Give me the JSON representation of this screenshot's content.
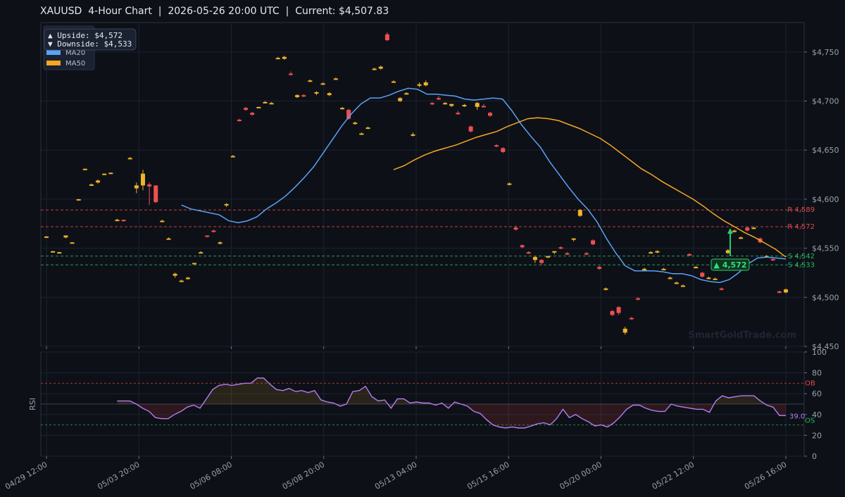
{
  "title": "XAUUSD  4-Hour Chart  |  2026-05-26 20:00 UTC  |  Current: $4,507.83",
  "watermark": "SmartGoldTrade.com",
  "colors": {
    "bg": "#0d1017",
    "grid": "#1c2230",
    "bull": "#f0b429",
    "bear": "#ef4f4f",
    "ma20": "#5aa2f5",
    "ma50": "#f5a623",
    "rsi": "#b57cf0",
    "resistance": "#e04a4a",
    "support": "#25b860",
    "arrow": "#2ecc71"
  },
  "chart_data": [
    {
      "type": "candlestick",
      "title": "XAUUSD  4-Hour Chart",
      "ylim": [
        4450,
        4780
      ],
      "y_ticks": [
        "$4,450",
        "$4,500",
        "$4,550",
        "$4,600",
        "$4,650",
        "$4,700",
        "$4,750"
      ],
      "y_tick_values": [
        4450,
        4500,
        4550,
        4600,
        4650,
        4700,
        4750
      ],
      "x_tick_labels": [
        "04/29 12:00",
        "05/03 20:00",
        "05/06 08:00",
        "05/08 20:00",
        "05/13 04:00",
        "05/15 16:00",
        "05/20 00:00",
        "05/22 12:00",
        "05/26 16:00"
      ],
      "legend": [
        {
          "name": "▲ Upside:   $4,572"
        },
        {
          "name": "▼ Downside: $4,533"
        },
        {
          "name": "MA20",
          "color": "#5aa2f5"
        },
        {
          "name": "MA50",
          "color": "#f5a623"
        }
      ],
      "levels": [
        {
          "label": "R 4,589",
          "value": 4589,
          "kind": "resistance"
        },
        {
          "label": "R 4,572",
          "value": 4572,
          "kind": "resistance"
        },
        {
          "label": "S 4,542",
          "value": 4542,
          "kind": "support"
        },
        {
          "label": "S 4,533",
          "value": 4533,
          "kind": "support"
        }
      ],
      "target_label": "▲ 4,572",
      "target_value": 4572,
      "candles": [
        [
          4562,
          4562,
          4561,
          4562
        ],
        [
          4547,
          4547,
          4546,
          4547
        ],
        [
          4546,
          4546,
          4545,
          4546
        ],
        [
          4561,
          4563,
          4560,
          4563
        ],
        [
          4556,
          4556,
          4555,
          4556
        ],
        [
          4600,
          4600,
          4599,
          4600
        ],
        [
          4631,
          4631,
          4630,
          4631
        ],
        [
          4615,
          4616,
          4614,
          4615
        ],
        [
          4617,
          4620,
          4616,
          4619
        ],
        [
          4626,
          4626,
          4625,
          4626
        ],
        [
          4627,
          4627,
          4626,
          4627
        ],
        [
          4579,
          4580,
          4578,
          4579
        ],
        [
          4579,
          4579,
          4577,
          4578
        ],
        [
          4642,
          4643,
          4641,
          4642
        ],
        [
          4611,
          4617,
          4606,
          4614
        ],
        [
          4614,
          4630,
          4609,
          4626
        ],
        [
          4615,
          4617,
          4594,
          4613
        ],
        [
          4614,
          4614,
          4596,
          4597
        ],
        [
          4578,
          4579,
          4577,
          4578
        ],
        [
          4560,
          4561,
          4559,
          4560
        ],
        [
          4522,
          4525,
          4520,
          4524
        ],
        [
          4517,
          4518,
          4516,
          4517
        ],
        [
          4520,
          4521,
          4518,
          4520
        ],
        [
          4535,
          4535,
          4534,
          4535
        ],
        [
          4546,
          4547,
          4545,
          4546
        ],
        [
          4563,
          4563,
          4561,
          4562
        ],
        [
          4568,
          4569,
          4566,
          4567
        ],
        [
          4555,
          4557,
          4554,
          4556
        ],
        [
          4594,
          4596,
          4592,
          4595
        ],
        [
          4644,
          4645,
          4643,
          4644
        ],
        [
          4681,
          4682,
          4679,
          4680
        ],
        [
          4693,
          4694,
          4690,
          4691
        ],
        [
          4688,
          4689,
          4685,
          4686
        ],
        [
          4694,
          4694,
          4693,
          4694
        ],
        [
          4699,
          4700,
          4698,
          4699
        ],
        [
          4698,
          4699,
          4697,
          4698
        ],
        [
          4744,
          4745,
          4743,
          4744
        ],
        [
          4743,
          4746,
          4742,
          4745
        ],
        [
          4728,
          4730,
          4726,
          4727
        ],
        [
          4704,
          4707,
          4703,
          4706
        ],
        [
          4706,
          4707,
          4704,
          4705
        ],
        [
          4721,
          4722,
          4720,
          4721
        ],
        [
          4708,
          4710,
          4706,
          4709
        ],
        [
          4718,
          4719,
          4717,
          4718
        ],
        [
          4706,
          4709,
          4705,
          4708
        ],
        [
          4723,
          4724,
          4722,
          4723
        ],
        [
          4693,
          4694,
          4692,
          4693
        ],
        [
          4691,
          4692,
          4681,
          4682
        ],
        [
          4677,
          4679,
          4676,
          4678
        ],
        [
          4667,
          4668,
          4666,
          4667
        ],
        [
          4673,
          4674,
          4672,
          4673
        ],
        [
          4733,
          4734,
          4732,
          4733
        ],
        [
          4733,
          4736,
          4732,
          4735
        ],
        [
          4768,
          4770,
          4761,
          4762
        ],
        [
          4720,
          4721,
          4719,
          4720
        ],
        [
          4700,
          4704,
          4699,
          4703
        ],
        [
          4708,
          4709,
          4707,
          4708
        ],
        [
          4666,
          4668,
          4664,
          4666
        ],
        [
          4716,
          4719,
          4714,
          4717
        ],
        [
          4716,
          4721,
          4715,
          4719
        ],
        [
          4698,
          4699,
          4696,
          4697
        ],
        [
          4703,
          4705,
          4701,
          4702
        ],
        [
          4698,
          4699,
          4697,
          4698
        ],
        [
          4695,
          4697,
          4694,
          4697
        ],
        [
          4688,
          4690,
          4686,
          4687
        ],
        [
          4695,
          4697,
          4694,
          4696
        ],
        [
          4674,
          4675,
          4668,
          4669
        ],
        [
          4694,
          4699,
          4691,
          4698
        ],
        [
          4695,
          4697,
          4694,
          4694
        ],
        [
          4688,
          4689,
          4684,
          4685
        ],
        [
          4655,
          4656,
          4653,
          4654
        ],
        [
          4652,
          4653,
          4647,
          4648
        ],
        [
          4615,
          4617,
          4614,
          4616
        ],
        [
          4571,
          4573,
          4568,
          4569
        ],
        [
          4553,
          4554,
          4550,
          4551
        ],
        [
          4546,
          4547,
          4544,
          4545
        ],
        [
          4538,
          4542,
          4535,
          4541
        ],
        [
          4538,
          4539,
          4533,
          4535
        ],
        [
          4541,
          4542,
          4540,
          4542
        ],
        [
          4546,
          4547,
          4544,
          4547
        ],
        [
          4551,
          4552,
          4549,
          4550
        ],
        [
          4545,
          4546,
          4543,
          4544
        ],
        [
          4559,
          4560,
          4557,
          4560
        ],
        [
          4583,
          4590,
          4582,
          4589
        ],
        [
          4545,
          4546,
          4543,
          4544
        ],
        [
          4558,
          4559,
          4553,
          4554
        ],
        [
          4531,
          4532,
          4528,
          4529
        ],
        [
          4509,
          4510,
          4507,
          4509
        ],
        [
          4486,
          4487,
          4481,
          4482
        ],
        [
          4490,
          4491,
          4482,
          4484
        ],
        [
          4464,
          4470,
          4462,
          4468
        ],
        [
          4479,
          4480,
          4477,
          4478
        ],
        [
          4499,
          4500,
          4497,
          4498
        ],
        [
          4529,
          4530,
          4527,
          4529
        ],
        [
          4546,
          4547,
          4545,
          4546
        ],
        [
          4546,
          4548,
          4545,
          4547
        ],
        [
          4529,
          4530,
          4528,
          4529
        ],
        [
          4520,
          4521,
          4519,
          4520
        ],
        [
          4515,
          4516,
          4514,
          4515
        ],
        [
          4512,
          4513,
          4511,
          4512
        ],
        [
          4544,
          4545,
          4542,
          4543
        ],
        [
          4531,
          4532,
          4530,
          4531
        ],
        [
          4525,
          4526,
          4520,
          4521
        ],
        [
          4520,
          4521,
          4519,
          4520
        ],
        [
          4519,
          4520,
          4518,
          4519
        ],
        [
          4509,
          4510,
          4507,
          4508
        ],
        [
          4545,
          4549,
          4544,
          4548
        ],
        [
          4567,
          4569,
          4566,
          4568
        ],
        [
          4561,
          4562,
          4560,
          4561
        ],
        [
          4571,
          4572,
          4567,
          4568
        ],
        [
          4571,
          4572,
          4570,
          4571
        ],
        [
          4560,
          4561,
          4555,
          4556
        ],
        [
          4542,
          4543,
          4541,
          4542
        ],
        [
          4539,
          4540,
          4537,
          4538
        ],
        [
          4506,
          4507,
          4504,
          4505
        ],
        [
          4505,
          4509,
          4504,
          4508
        ]
      ],
      "ma20": [
        [
          4594,
          4590,
          4588,
          4586,
          4584,
          4578,
          4576,
          4578,
          4582,
          4590,
          4596,
          4603,
          4612,
          4622,
          4633,
          4647,
          4661,
          4675,
          4687,
          4697,
          4703,
          4703,
          4706,
          4710,
          4713,
          4712,
          4707,
          4707,
          4706,
          4705,
          4702,
          4701,
          4702,
          4703,
          4702,
          4690,
          4676,
          4664,
          4653,
          4638,
          4625,
          4612,
          4600,
          4590,
          4577,
          4560,
          4545,
          4532,
          4527,
          4527,
          4527,
          4526,
          4524,
          4524,
          4522,
          4518,
          4516,
          4515,
          4518,
          4525,
          4534,
          4540,
          4541,
          4540,
          4539
        ],
        [
          0,
          1,
          2,
          3,
          4,
          5,
          6,
          7,
          8,
          9,
          10,
          11,
          12,
          13,
          14,
          15,
          16,
          17,
          18,
          19,
          20,
          21,
          22,
          23,
          24,
          25,
          26,
          27,
          28,
          29,
          30,
          31,
          32,
          33,
          34,
          35,
          36,
          37,
          38,
          39,
          40,
          41,
          42,
          43,
          44,
          45,
          46,
          47,
          48,
          49,
          50,
          51,
          52,
          53,
          54,
          55,
          56,
          57,
          58,
          59,
          60,
          61,
          62,
          63,
          64
        ]
      ],
      "ma50": [
        4630,
        4634,
        4640,
        4645,
        4649,
        4652,
        4655,
        4659,
        4663,
        4666,
        4669,
        4674,
        4678,
        4682,
        4683,
        4682,
        4680,
        4676,
        4672,
        4667,
        4662,
        4655,
        4647,
        4639,
        4631,
        4625,
        4618,
        4612,
        4606,
        4600,
        4593,
        4585,
        4578,
        4572,
        4566,
        4561,
        4555,
        4549,
        4541
      ],
      "target_x_index": 107
    },
    {
      "type": "line",
      "ylabel": "RSI",
      "ylim": [
        0,
        100
      ],
      "y_ticks": [
        "0",
        "20",
        "40",
        "60",
        "80",
        "100"
      ],
      "y_tick_values": [
        0,
        20,
        40,
        60,
        80,
        100
      ],
      "ob_label": "OB",
      "ob_value": 70,
      "os_label": "OS",
      "os_value": 30,
      "last_label": "39.0",
      "values": [
        53,
        53,
        53,
        50,
        46,
        43,
        37,
        36,
        36,
        40,
        43,
        47,
        49,
        46,
        55,
        64,
        68,
        69,
        68,
        69,
        70,
        70,
        75,
        75,
        69,
        64,
        63,
        65,
        62,
        63,
        61,
        63,
        54,
        52,
        51,
        48,
        50,
        62,
        63,
        67,
        57,
        53,
        54,
        46,
        55,
        55,
        51,
        52,
        51,
        51,
        49,
        51,
        46,
        52,
        50,
        48,
        43,
        41,
        35,
        30,
        28,
        27,
        28,
        27,
        27,
        29,
        31,
        32,
        30,
        36,
        45,
        37,
        40,
        36,
        33,
        29,
        30,
        28,
        32,
        38,
        45,
        49,
        49,
        46,
        44,
        43,
        43,
        50,
        48,
        47,
        46,
        45,
        45,
        42,
        53,
        58,
        56,
        57,
        58,
        58,
        58,
        53,
        49,
        47,
        39,
        39
      ],
      "start_index": 11
    }
  ]
}
